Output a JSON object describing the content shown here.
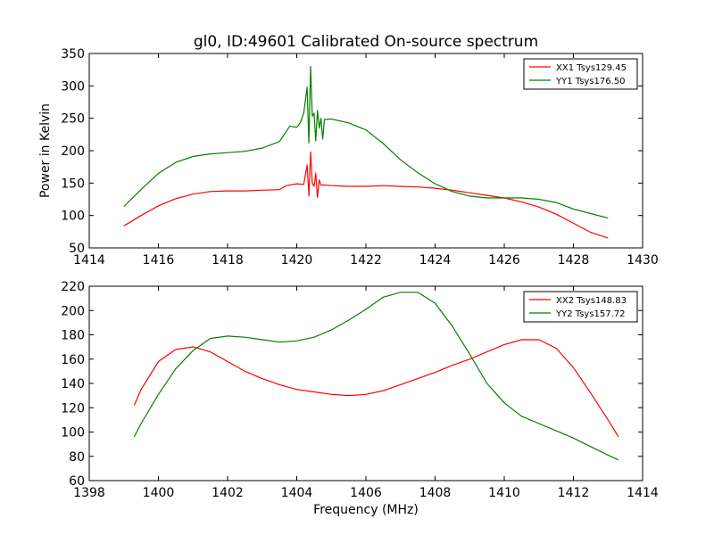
{
  "figure": {
    "title": "gl0, ID:49601 Calibrated On-source spectrum"
  },
  "chart_data": [
    {
      "type": "line",
      "title": "gl0, ID:49601 Calibrated On-source spectrum",
      "xlabel": "",
      "ylabel": "Power in Kelvin",
      "xlim": [
        1414,
        1430
      ],
      "ylim": [
        50,
        350
      ],
      "xticks": [
        1414,
        1416,
        1418,
        1420,
        1422,
        1424,
        1426,
        1428,
        1430
      ],
      "yticks": [
        50,
        100,
        150,
        200,
        250,
        300,
        350
      ],
      "grid": false,
      "legend_position": "upper-right",
      "series": [
        {
          "name": "XX1 Tsys129.45",
          "color": "#ff0000",
          "x": [
            1415.0,
            1415.5,
            1416.0,
            1416.5,
            1417.0,
            1417.5,
            1418.0,
            1418.5,
            1419.0,
            1419.5,
            1419.7,
            1420.0,
            1420.2,
            1420.3,
            1420.35,
            1420.4,
            1420.45,
            1420.5,
            1420.55,
            1420.6,
            1420.65,
            1420.7,
            1420.8,
            1421.0,
            1421.5,
            1422.0,
            1422.5,
            1423.0,
            1423.5,
            1424.0,
            1424.5,
            1425.0,
            1425.5,
            1426.0,
            1426.5,
            1427.0,
            1427.5,
            1428.0,
            1428.5,
            1429.0
          ],
          "y": [
            84,
            100,
            115,
            126,
            133,
            137,
            138,
            138,
            139,
            140,
            146,
            149,
            148,
            178,
            130,
            198,
            150,
            145,
            165,
            128,
            155,
            147,
            147,
            146,
            145,
            145,
            146,
            145,
            144,
            142,
            139,
            135,
            131,
            127,
            121,
            113,
            102,
            88,
            74,
            65
          ]
        },
        {
          "name": "YY1 Tsys176.50",
          "color": "#008000",
          "x": [
            1415.0,
            1415.5,
            1416.0,
            1416.5,
            1417.0,
            1417.5,
            1418.0,
            1418.5,
            1419.0,
            1419.3,
            1419.5,
            1419.8,
            1420.0,
            1420.1,
            1420.2,
            1420.3,
            1420.35,
            1420.4,
            1420.45,
            1420.5,
            1420.55,
            1420.6,
            1420.65,
            1420.7,
            1420.75,
            1420.8,
            1421.0,
            1421.5,
            1422.0,
            1422.5,
            1423.0,
            1423.5,
            1424.0,
            1424.5,
            1425.0,
            1425.5,
            1426.0,
            1426.5,
            1427.0,
            1427.5,
            1428.0,
            1428.5,
            1429.0
          ],
          "y": [
            114,
            140,
            165,
            182,
            191,
            195,
            197,
            199,
            204,
            210,
            214,
            238,
            236,
            243,
            258,
            298,
            212,
            330,
            253,
            258,
            215,
            262,
            235,
            250,
            218,
            248,
            249,
            243,
            232,
            211,
            186,
            166,
            149,
            137,
            130,
            127,
            127,
            127,
            125,
            120,
            110,
            103,
            96
          ]
        }
      ]
    },
    {
      "type": "line",
      "title": "",
      "xlabel": "Frequency (MHz)",
      "ylabel": "",
      "xlim": [
        1398,
        1414
      ],
      "ylim": [
        60,
        220
      ],
      "xticks": [
        1398,
        1400,
        1402,
        1404,
        1406,
        1408,
        1410,
        1412,
        1414
      ],
      "yticks": [
        60,
        80,
        100,
        120,
        140,
        160,
        180,
        200,
        220
      ],
      "grid": false,
      "legend_position": "upper-right",
      "series": [
        {
          "name": "XX2 Tsys148.83",
          "color": "#ff0000",
          "x": [
            1399.3,
            1399.5,
            1400.0,
            1400.5,
            1401.0,
            1401.5,
            1402.0,
            1402.5,
            1403.0,
            1403.5,
            1404.0,
            1404.5,
            1405.0,
            1405.5,
            1406.0,
            1406.5,
            1407.0,
            1407.5,
            1408.0,
            1408.5,
            1409.0,
            1409.5,
            1410.0,
            1410.5,
            1411.0,
            1411.5,
            1412.0,
            1412.5,
            1413.0,
            1413.3
          ],
          "y": [
            122,
            135,
            158,
            168,
            170,
            166,
            158,
            150,
            144,
            139,
            135,
            133,
            131,
            130,
            131,
            134,
            139,
            144,
            149,
            155,
            160,
            166,
            172,
            176,
            176,
            169,
            153,
            132,
            110,
            96
          ]
        },
        {
          "name": "YY2 Tsys157.72",
          "color": "#008000",
          "x": [
            1399.3,
            1399.5,
            1400.0,
            1400.5,
            1401.0,
            1401.5,
            1402.0,
            1402.5,
            1403.0,
            1403.5,
            1404.0,
            1404.5,
            1405.0,
            1405.5,
            1406.0,
            1406.5,
            1407.0,
            1407.5,
            1408.0,
            1408.5,
            1409.0,
            1409.5,
            1410.0,
            1410.5,
            1411.0,
            1411.5,
            1412.0,
            1412.5,
            1413.0,
            1413.3
          ],
          "y": [
            96,
            107,
            131,
            152,
            167,
            177,
            179,
            178,
            176,
            174,
            175,
            178,
            184,
            192,
            201,
            211,
            215,
            215,
            206,
            187,
            164,
            140,
            124,
            113,
            107,
            101,
            95,
            88,
            81,
            77
          ]
        }
      ]
    }
  ]
}
